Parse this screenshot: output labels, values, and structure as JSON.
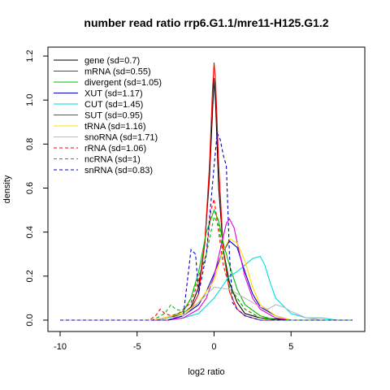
{
  "chart_data": {
    "type": "line",
    "title": "number read ratio rrp6.G1.1/mre11-H125.G1.2",
    "xlabel": "log2 ratio",
    "ylabel": "density",
    "xlim": [
      -10,
      9
    ],
    "ylim": [
      0,
      1.2
    ],
    "xticks": [
      -10,
      -5,
      0,
      5
    ],
    "yticks": [
      0.0,
      0.2,
      0.4,
      0.6,
      0.8,
      1.0,
      1.2
    ],
    "legend_position": "top-left",
    "grid": false,
    "series": [
      {
        "name": "gene (sd=0.7)",
        "color": "#000000",
        "dash": "solid",
        "x": [
          -10,
          -4,
          -3,
          -2,
          -1.5,
          -1,
          -0.6,
          -0.3,
          -0.1,
          0,
          0.1,
          0.3,
          0.6,
          1,
          1.5,
          2,
          3,
          5,
          9
        ],
        "y": [
          0,
          0,
          0.01,
          0.03,
          0.06,
          0.15,
          0.35,
          0.65,
          0.95,
          1.1,
          0.98,
          0.6,
          0.32,
          0.17,
          0.08,
          0.03,
          0.01,
          0,
          0
        ]
      },
      {
        "name": "mRNA (sd=0.55)",
        "color": "#ff0000",
        "dash": "solid",
        "x": [
          -10,
          -3,
          -2,
          -1.5,
          -1,
          -0.6,
          -0.3,
          -0.1,
          0,
          0.1,
          0.3,
          0.6,
          1,
          1.5,
          2,
          3,
          5,
          9
        ],
        "y": [
          0,
          0,
          0.02,
          0.05,
          0.12,
          0.35,
          0.7,
          1.05,
          1.17,
          1.08,
          0.7,
          0.32,
          0.13,
          0.05,
          0.02,
          0,
          0,
          0
        ]
      },
      {
        "name": "divergent (sd=1.05)",
        "color": "#00bb00",
        "dash": "solid",
        "x": [
          -10,
          -4,
          -3,
          -2,
          -1.5,
          -1,
          -0.5,
          0,
          0.3,
          0.6,
          1,
          1.5,
          2,
          3,
          4,
          9
        ],
        "y": [
          0,
          0,
          0.01,
          0.04,
          0.1,
          0.22,
          0.4,
          0.5,
          0.45,
          0.35,
          0.25,
          0.14,
          0.07,
          0.02,
          0,
          0
        ]
      },
      {
        "name": "XUT (sd=1.17)",
        "color": "#0000cc",
        "dash": "solid",
        "x": [
          -10,
          -3,
          -2,
          -1,
          -0.5,
          0,
          0.5,
          1,
          1.5,
          2,
          2.5,
          3,
          4,
          5,
          9
        ],
        "y": [
          0,
          0,
          0.02,
          0.07,
          0.13,
          0.21,
          0.3,
          0.36,
          0.33,
          0.22,
          0.12,
          0.06,
          0.02,
          0,
          0
        ]
      },
      {
        "name": "CUT (sd=1.45)",
        "color": "#00dddd",
        "dash": "solid",
        "x": [
          -10,
          -3,
          -2,
          -1,
          0,
          1,
          1.5,
          2,
          2.5,
          3,
          3.3,
          3.6,
          4,
          5,
          6,
          7,
          8,
          9
        ],
        "y": [
          0,
          0,
          0.01,
          0.03,
          0.1,
          0.2,
          0.22,
          0.25,
          0.28,
          0.29,
          0.25,
          0.18,
          0.1,
          0.03,
          0.01,
          0.01,
          0,
          0
        ]
      },
      {
        "name": "SUT (sd=0.95)",
        "color": "#dd00dd",
        "dash": "solid",
        "x": [
          -10,
          -3,
          -2,
          -1,
          -0.5,
          0,
          0.5,
          0.8,
          1,
          1.3,
          1.6,
          2,
          2.5,
          3,
          4,
          5,
          9
        ],
        "y": [
          0,
          0,
          0.01,
          0.05,
          0.1,
          0.2,
          0.35,
          0.44,
          0.46,
          0.42,
          0.32,
          0.2,
          0.1,
          0.05,
          0.01,
          0,
          0
        ]
      },
      {
        "name": "tRNA (sd=1.16)",
        "color": "#ffdd00",
        "dash": "solid",
        "x": [
          -10,
          -4,
          -2,
          -1,
          0,
          0.5,
          1,
          1.5,
          2,
          2.5,
          3,
          4,
          5,
          9
        ],
        "y": [
          0,
          0,
          0.03,
          0.08,
          0.18,
          0.3,
          0.37,
          0.35,
          0.27,
          0.15,
          0.07,
          0.02,
          0,
          0
        ]
      },
      {
        "name": "snoRNA (sd=1.71)",
        "color": "#bbbbbb",
        "dash": "solid",
        "x": [
          -10,
          -4,
          -2,
          -1,
          0,
          1,
          2,
          3,
          3.5,
          4,
          4.5,
          5,
          6,
          7,
          8,
          9
        ],
        "y": [
          0,
          0,
          0.02,
          0.08,
          0.15,
          0.14,
          0.1,
          0.06,
          0.05,
          0.07,
          0.06,
          0.04,
          0.01,
          0,
          0,
          0
        ]
      },
      {
        "name": "rRNA (sd=1.06)",
        "color": "#ff0000",
        "dash": "dashed",
        "x": [
          -10,
          -4.2,
          -3.8,
          -3.5,
          -3.2,
          -2.8,
          -2.3,
          -1.5,
          -1,
          -0.5,
          -0.2,
          0,
          0.3,
          0.6,
          1,
          1.5,
          2,
          3,
          4,
          9
        ],
        "y": [
          0,
          0,
          0.02,
          0.05,
          0.03,
          0.02,
          0.03,
          0.08,
          0.18,
          0.3,
          0.5,
          0.55,
          0.4,
          0.25,
          0.15,
          0.1,
          0.05,
          0.01,
          0,
          0
        ]
      },
      {
        "name": "ncRNA (sd=1)",
        "color": "#00bb00",
        "dash": "dashed",
        "x": [
          -10,
          -4,
          -3.2,
          -2.8,
          -2.5,
          -2,
          -1.5,
          -1,
          -0.5,
          0,
          0.3,
          0.6,
          1,
          1.5,
          2,
          3,
          4,
          9
        ],
        "y": [
          0,
          0,
          0.03,
          0.07,
          0.05,
          0.04,
          0.1,
          0.2,
          0.3,
          0.47,
          0.43,
          0.3,
          0.15,
          0.1,
          0.05,
          0.01,
          0,
          0
        ]
      },
      {
        "name": "snRNA (sd=0.83)",
        "color": "#0000cc",
        "dash": "dashed",
        "x": [
          -10,
          -3,
          -2,
          -1.7,
          -1.5,
          -1.2,
          -1,
          -0.5,
          0,
          0.2,
          0.4,
          0.6,
          0.8,
          1,
          1.2,
          1.5,
          2,
          3,
          4,
          9
        ],
        "y": [
          0,
          0,
          0.02,
          0.2,
          0.32,
          0.3,
          0.12,
          0.3,
          0.7,
          0.85,
          0.82,
          0.75,
          0.7,
          0.3,
          0.08,
          0.05,
          0.02,
          0,
          0,
          0
        ]
      }
    ]
  }
}
